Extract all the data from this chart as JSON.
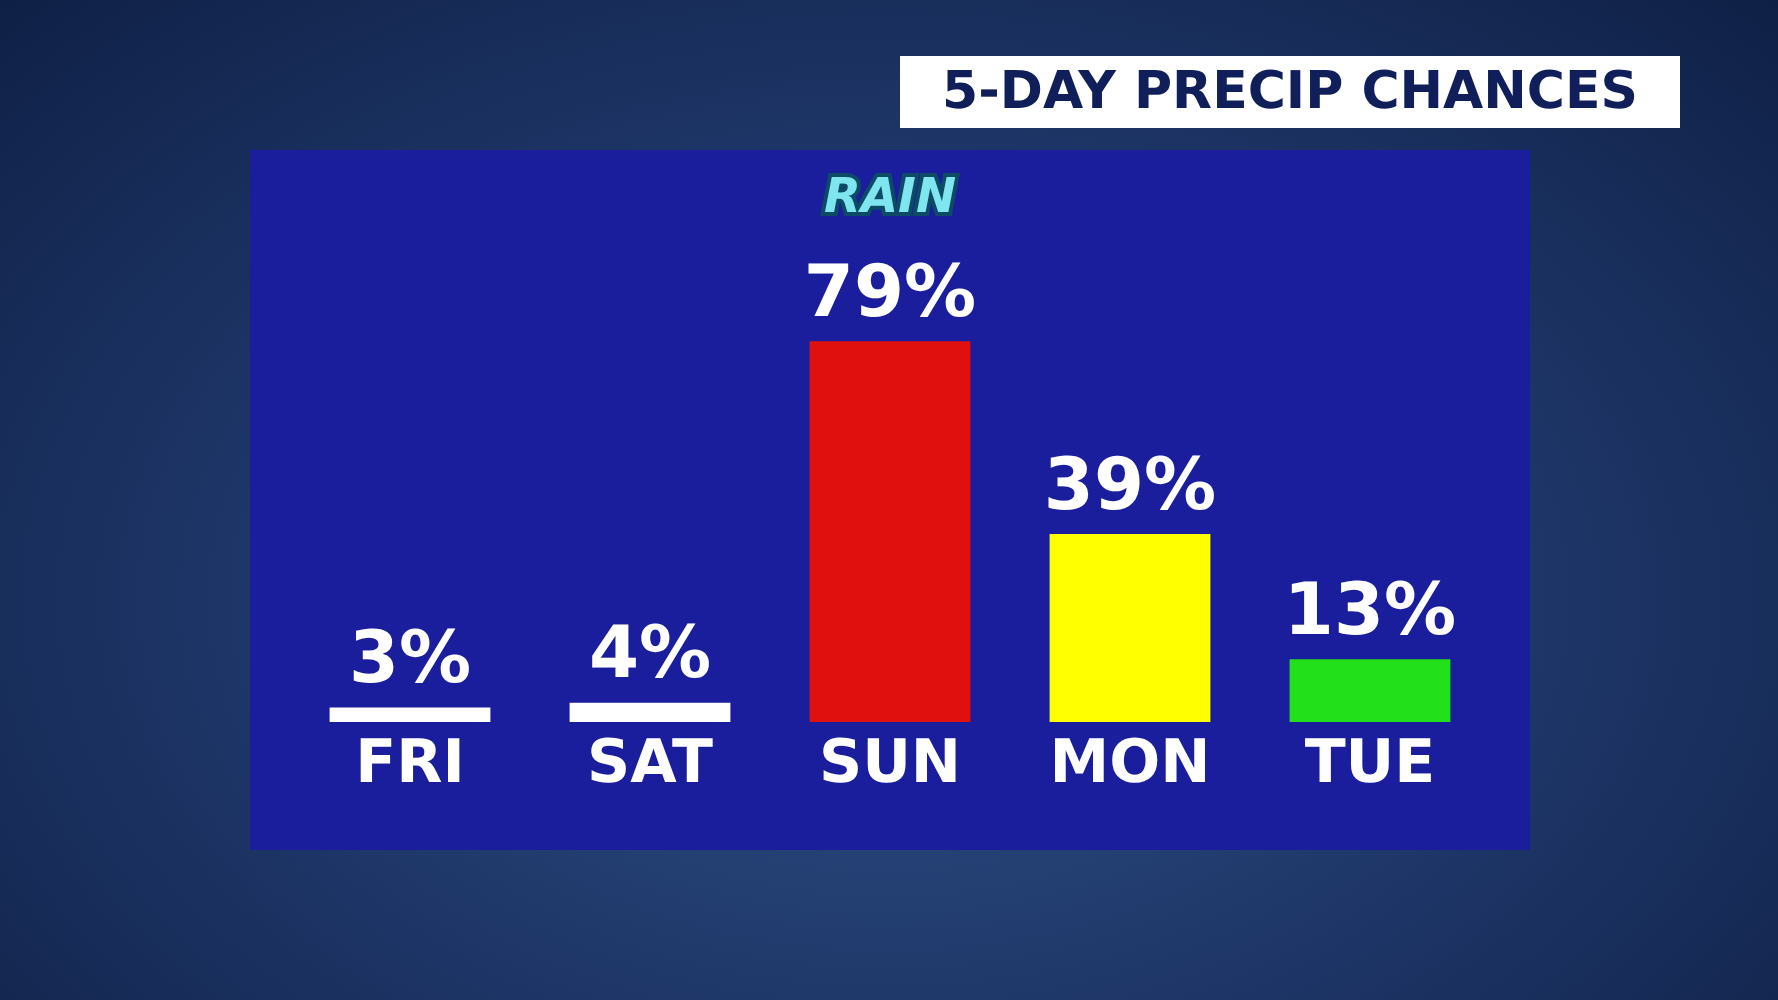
{
  "chart_data": {
    "type": "bar",
    "title": "5-DAY PRECIP CHANCES",
    "categories": [
      "FRI",
      "SAT",
      "SUN",
      "MON",
      "TUE"
    ],
    "values": [
      3,
      4,
      79,
      39,
      13
    ],
    "colors": [
      "#ffffff",
      "#ffffff",
      "#e0100f",
      "#ffff00",
      "#22e01a"
    ],
    "value_labels": [
      "3%",
      "4%",
      "79%",
      "39%",
      "13%"
    ],
    "annotations": [
      "RAIN"
    ],
    "grid": false,
    "legend": false
  }
}
